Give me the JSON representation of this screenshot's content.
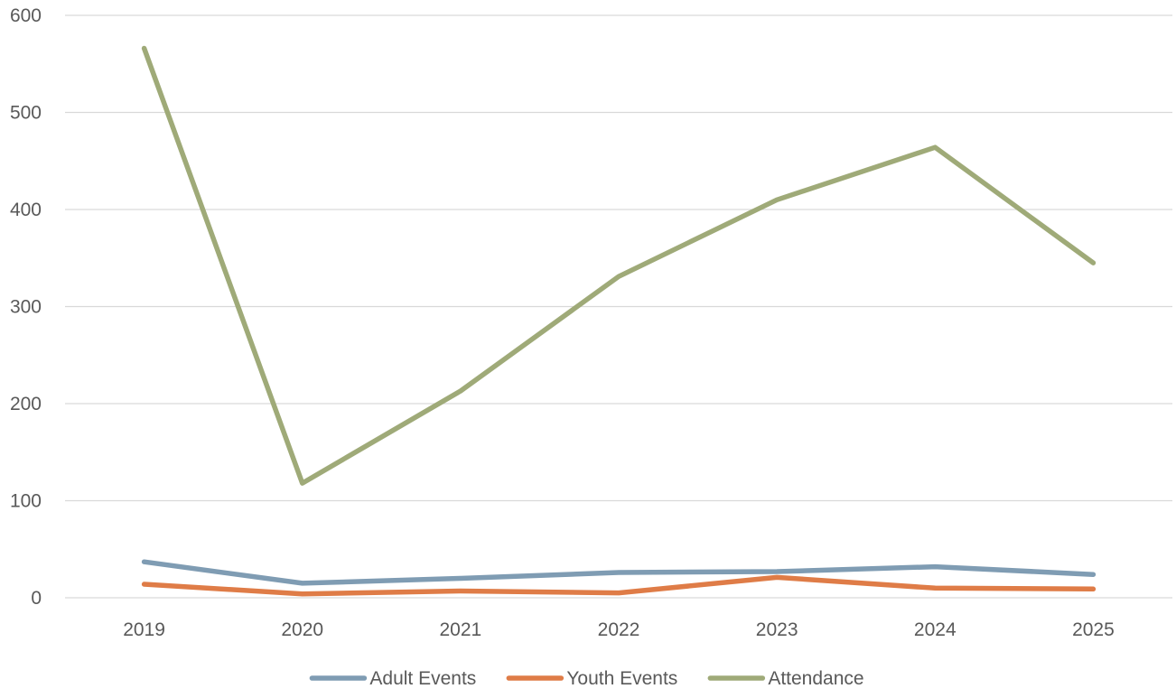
{
  "chart_data": {
    "type": "line",
    "title": "",
    "xlabel": "",
    "ylabel": "",
    "categories": [
      "2019",
      "2020",
      "2021",
      "2022",
      "2023",
      "2024",
      "2025"
    ],
    "ylim": [
      0,
      600
    ],
    "yticks": [
      0,
      100,
      200,
      300,
      400,
      500,
      600
    ],
    "grid": true,
    "legend_position": "bottom",
    "series": [
      {
        "name": "Adult Events",
        "color": "#7F9CB3",
        "values": [
          37,
          15,
          20,
          26,
          27,
          32,
          24
        ]
      },
      {
        "name": "Youth Events",
        "color": "#DF7C47",
        "values": [
          14,
          4,
          7,
          5,
          21,
          10,
          9
        ]
      },
      {
        "name": "Attendance",
        "color": "#9FAA78",
        "values": [
          566,
          118,
          213,
          331,
          410,
          464,
          345
        ]
      }
    ]
  }
}
